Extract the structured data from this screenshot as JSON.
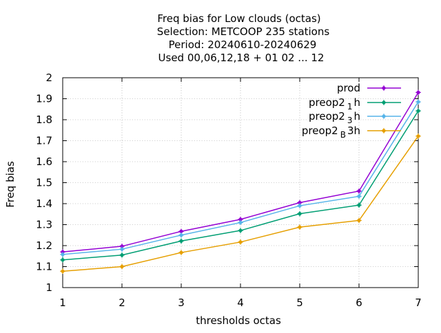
{
  "chart_data": {
    "type": "line",
    "title_lines": [
      "Freq bias  for Low clouds (octas)",
      "Selection: METCOOP    235 stations",
      "Period: 20240610-20240629",
      "Used  00,06,12,18 + 01 02 ... 12"
    ],
    "xlabel": "thresholds octas",
    "ylabel": "Freq bias",
    "x": [
      1,
      2,
      3,
      4,
      5,
      6,
      7
    ],
    "xlim": [
      1,
      7
    ],
    "ylim": [
      1,
      2
    ],
    "x_ticks": [
      "1",
      "2",
      "3",
      "4",
      "5",
      "6",
      "7"
    ],
    "y_ticks": [
      "1",
      "1.1",
      "1.2",
      "1.3",
      "1.4",
      "1.5",
      "1.6",
      "1.7",
      "1.8",
      "1.9",
      "2"
    ],
    "grid": true,
    "legend_position": "top-right",
    "series": [
      {
        "name": "prod",
        "label_main": "prod",
        "label_sub": "",
        "label_tail": "",
        "color": "#9400d3",
        "values": [
          1.17,
          1.197,
          1.268,
          1.325,
          1.405,
          1.46,
          1.93
        ]
      },
      {
        "name": "preop2_1h",
        "label_main": "preop2",
        "label_sub": "1",
        "label_tail": "h",
        "color": "#009e73",
        "values": [
          1.132,
          1.155,
          1.222,
          1.272,
          1.352,
          1.393,
          1.842
        ]
      },
      {
        "name": "preop2_3h",
        "label_main": "preop2",
        "label_sub": "3",
        "label_tail": "h",
        "color": "#56b4e9",
        "values": [
          1.158,
          1.183,
          1.25,
          1.31,
          1.39,
          1.435,
          1.885
        ]
      },
      {
        "name": "preop2_B3h",
        "label_main": "preop2",
        "label_sub": "B",
        "label_tail": "3h",
        "color": "#e69f00",
        "values": [
          1.078,
          1.1,
          1.167,
          1.217,
          1.288,
          1.32,
          1.722
        ]
      }
    ]
  }
}
